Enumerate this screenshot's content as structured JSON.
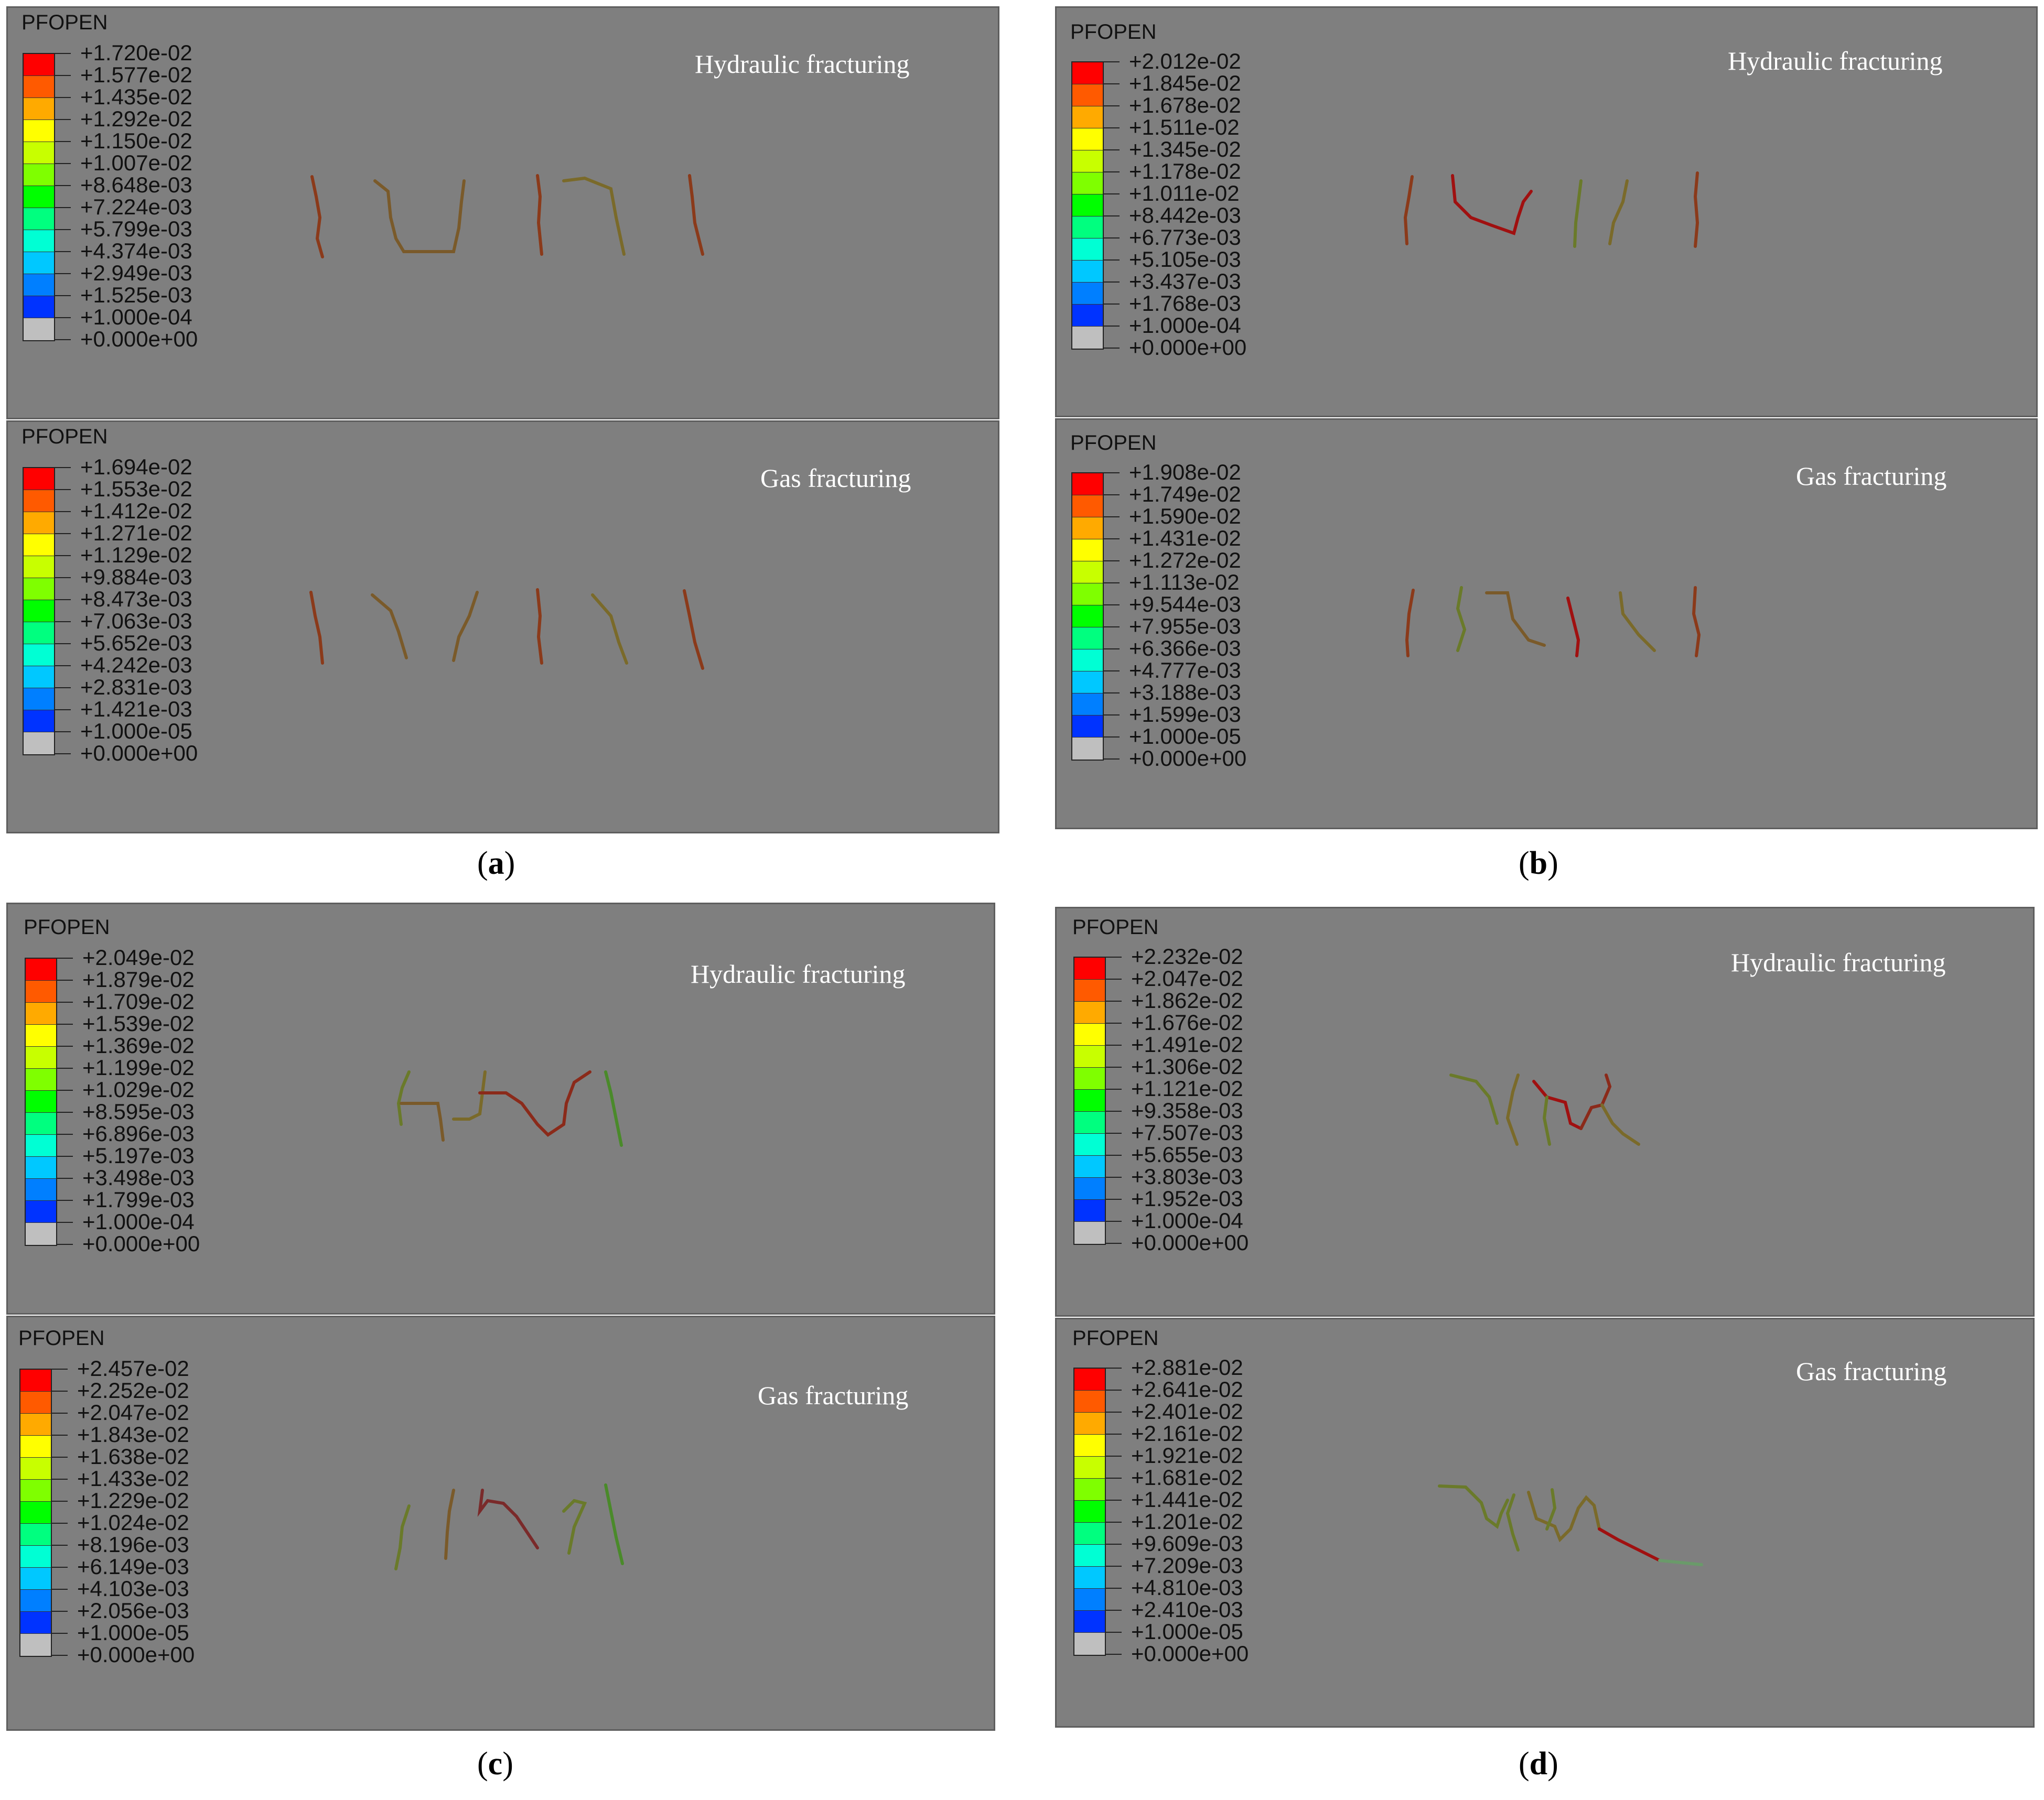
{
  "colors": [
    "#ff0000",
    "#ff5a00",
    "#ffaa00",
    "#ffff00",
    "#c8ff00",
    "#7fff00",
    "#00ff00",
    "#00ff7f",
    "#00ffd4",
    "#00c8ff",
    "#007fff",
    "#0033ff",
    "#0000c8",
    "#bfbfbf"
  ],
  "captions": {
    "a": "a",
    "b": "b",
    "c": "c",
    "d": "d"
  },
  "panels": [
    {
      "field": "PFOPEN",
      "title": "Hydraulic fracturing",
      "levels": [
        "+1.720e-02",
        "+1.577e-02",
        "+1.435e-02",
        "+1.292e-02",
        "+1.150e-02",
        "+1.007e-02",
        "+8.648e-03",
        "+7.224e-03",
        "+5.799e-03",
        "+4.374e-03",
        "+2.949e-03",
        "+1.525e-03",
        "+1.000e-04",
        "+0.000e+00"
      ]
    },
    {
      "field": "PFOPEN",
      "title": "Gas fracturing",
      "levels": [
        "+1.694e-02",
        "+1.553e-02",
        "+1.412e-02",
        "+1.271e-02",
        "+1.129e-02",
        "+9.884e-03",
        "+8.473e-03",
        "+7.063e-03",
        "+5.652e-03",
        "+4.242e-03",
        "+2.831e-03",
        "+1.421e-03",
        "+1.000e-05",
        "+0.000e+00"
      ]
    },
    {
      "field": "PFOPEN",
      "title": "Hydraulic fracturing",
      "levels": [
        "+2.012e-02",
        "+1.845e-02",
        "+1.678e-02",
        "+1.511e-02",
        "+1.345e-02",
        "+1.178e-02",
        "+1.011e-02",
        "+8.442e-03",
        "+6.773e-03",
        "+5.105e-03",
        "+3.437e-03",
        "+1.768e-03",
        "+1.000e-04",
        "+0.000e+00"
      ]
    },
    {
      "field": "PFOPEN",
      "title": "Gas fracturing",
      "levels": [
        "+1.908e-02",
        "+1.749e-02",
        "+1.590e-02",
        "+1.431e-02",
        "+1.272e-02",
        "+1.113e-02",
        "+9.544e-03",
        "+7.955e-03",
        "+6.366e-03",
        "+4.777e-03",
        "+3.188e-03",
        "+1.599e-03",
        "+1.000e-05",
        "+0.000e+00"
      ]
    },
    {
      "field": "PFOPEN",
      "title": "Hydraulic fracturing",
      "levels": [
        "+2.049e-02",
        "+1.879e-02",
        "+1.709e-02",
        "+1.539e-02",
        "+1.369e-02",
        "+1.199e-02",
        "+1.029e-02",
        "+8.595e-03",
        "+6.896e-03",
        "+5.197e-03",
        "+3.498e-03",
        "+1.799e-03",
        "+1.000e-04",
        "+0.000e+00"
      ]
    },
    {
      "field": "PFOPEN",
      "title": "Gas fracturing",
      "levels": [
        "+2.457e-02",
        "+2.252e-02",
        "+2.047e-02",
        "+1.843e-02",
        "+1.638e-02",
        "+1.433e-02",
        "+1.229e-02",
        "+1.024e-02",
        "+8.196e-03",
        "+6.149e-03",
        "+4.103e-03",
        "+2.056e-03",
        "+1.000e-05",
        "+0.000e+00"
      ]
    },
    {
      "field": "PFOPEN",
      "title": "Hydraulic fracturing",
      "levels": [
        "+2.232e-02",
        "+2.047e-02",
        "+1.862e-02",
        "+1.676e-02",
        "+1.491e-02",
        "+1.306e-02",
        "+1.121e-02",
        "+9.358e-03",
        "+7.507e-03",
        "+5.655e-03",
        "+3.803e-03",
        "+1.952e-03",
        "+1.000e-04",
        "+0.000e+00"
      ]
    },
    {
      "field": "PFOPEN",
      "title": "Gas fracturing",
      "levels": [
        "+2.881e-02",
        "+2.641e-02",
        "+2.401e-02",
        "+2.161e-02",
        "+1.921e-02",
        "+1.681e-02",
        "+1.441e-02",
        "+1.201e-02",
        "+9.609e-03",
        "+7.209e-03",
        "+4.810e-03",
        "+2.410e-03",
        "+1.000e-05",
        "+0.000e+00"
      ]
    }
  ]
}
